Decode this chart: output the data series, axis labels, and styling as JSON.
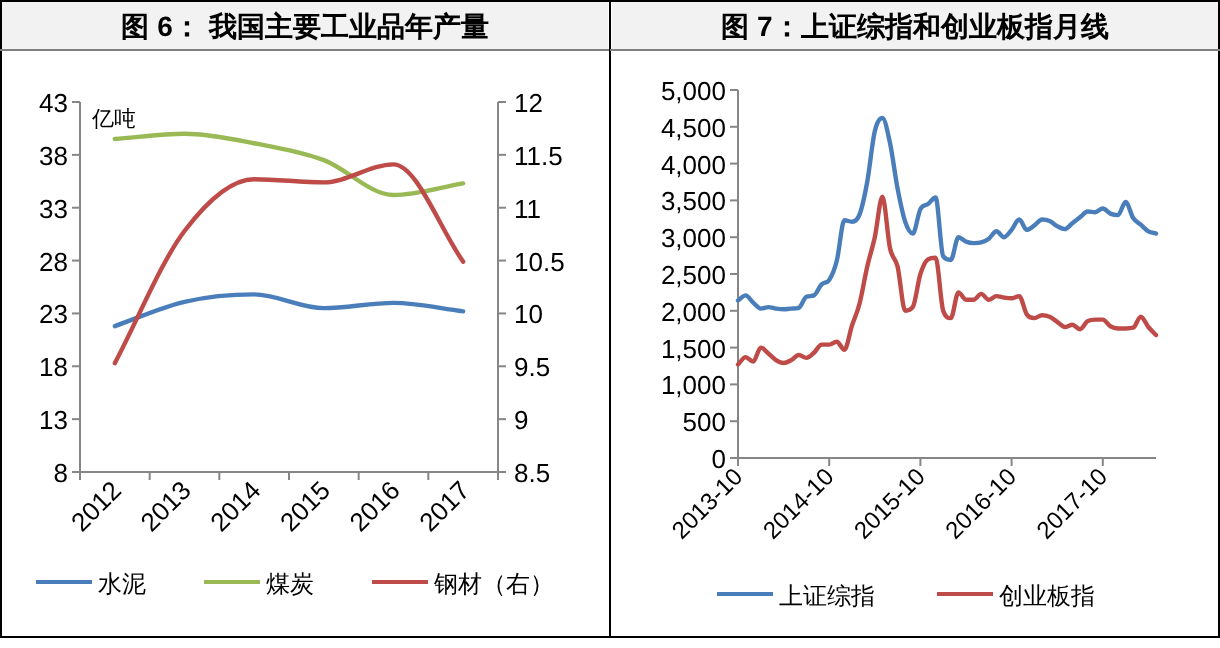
{
  "chart_data": [
    {
      "type": "line",
      "title": "图 6：  我国主要工业品年产量",
      "ylabel": "亿吨",
      "categories": [
        "2012",
        "2013",
        "2014",
        "2015",
        "2016",
        "2017"
      ],
      "series": [
        {
          "name": "水泥",
          "color": "#4a7ebb",
          "values": [
            21.8,
            24.1,
            24.8,
            23.5,
            24.0,
            23.2
          ]
        },
        {
          "name": "煤炭",
          "color": "#98b954",
          "values": [
            39.5,
            40.0,
            39.1,
            37.5,
            34.2,
            35.3
          ]
        },
        {
          "name": "钢材（右）",
          "color": "#be4b48",
          "axis": "y2",
          "values": [
            9.53,
            10.78,
            11.27,
            11.24,
            11.41,
            10.49
          ]
        }
      ],
      "ylim": [
        8,
        43
      ],
      "yticks": [
        8,
        13,
        18,
        23,
        28,
        33,
        38,
        43
      ],
      "y2lim": [
        8.5,
        12
      ],
      "y2ticks": [
        {
          "value": 8.5,
          "label": "8.5"
        },
        9,
        {
          "value": 9.5,
          "label": "9.5"
        },
        10,
        {
          "value": 10.5,
          "label": "10.5"
        },
        11,
        {
          "value": 11.5,
          "label": "11.5"
        },
        12
      ],
      "legend": "bottom",
      "grid": false
    },
    {
      "type": "line",
      "title": "图 7：上证综指和创业板指月线",
      "x": [
        "2013-10",
        "2013-11",
        "2013-12",
        "2014-01",
        "2014-02",
        "2014-03",
        "2014-04",
        "2014-05",
        "2014-06",
        "2014-07",
        "2014-08",
        "2014-09",
        "2014-10",
        "2014-11",
        "2014-12",
        "2015-01",
        "2015-02",
        "2015-03",
        "2015-04",
        "2015-05",
        "2015-06",
        "2015-07",
        "2015-08",
        "2015-09",
        "2015-10",
        "2015-11",
        "2015-12",
        "2016-01",
        "2016-02",
        "2016-03",
        "2016-04",
        "2016-05",
        "2016-06",
        "2016-07",
        "2016-08",
        "2016-09",
        "2016-10",
        "2016-11",
        "2016-12",
        "2017-01",
        "2017-02",
        "2017-03",
        "2017-04",
        "2017-05",
        "2017-06",
        "2017-07",
        "2017-08",
        "2017-09",
        "2017-10",
        "2017-11",
        "2017-12",
        "2018-01",
        "2018-02",
        "2018-03",
        "2018-04",
        "2018-05"
      ],
      "series": [
        {
          "name": "上证综指",
          "color": "#4a7ebb",
          "values": [
            2140,
            2210,
            2110,
            2030,
            2050,
            2030,
            2020,
            2030,
            2040,
            2190,
            2210,
            2360,
            2420,
            2680,
            3230,
            3210,
            3310,
            3750,
            4440,
            4620,
            4280,
            3660,
            3210,
            3050,
            3380,
            3450,
            3540,
            2740,
            2690,
            3000,
            2940,
            2920,
            2930,
            2980,
            3080,
            3000,
            3100,
            3240,
            3100,
            3160,
            3240,
            3220,
            3150,
            3110,
            3190,
            3270,
            3350,
            3340,
            3390,
            3320,
            3300,
            3480,
            3260,
            3170,
            3080,
            3050
          ]
        },
        {
          "name": "创业板指",
          "color": "#be4b48",
          "values": [
            1270,
            1370,
            1310,
            1500,
            1420,
            1330,
            1290,
            1330,
            1400,
            1360,
            1430,
            1540,
            1540,
            1580,
            1470,
            1800,
            2100,
            2600,
            3000,
            3550,
            2850,
            2600,
            2000,
            2050,
            2500,
            2700,
            2720,
            2000,
            1900,
            2250,
            2150,
            2150,
            2230,
            2150,
            2200,
            2180,
            2170,
            2200,
            1950,
            1900,
            1940,
            1920,
            1850,
            1780,
            1810,
            1750,
            1860,
            1880,
            1880,
            1790,
            1760,
            1760,
            1770,
            1920,
            1780,
            1670
          ]
        }
      ],
      "xlim": [
        "2013-10",
        "2018-05"
      ],
      "xticks": [
        "2013-10",
        "2014-10",
        "2015-10",
        "2016-10",
        "2017-10"
      ],
      "ylim": [
        0,
        5000
      ],
      "yticks": [
        0,
        500,
        {
          "value": 1000,
          "label": "1,000"
        },
        {
          "value": 1500,
          "label": "1,500"
        },
        {
          "value": 2000,
          "label": "2,000"
        },
        {
          "value": 2500,
          "label": "2,500"
        },
        {
          "value": 3000,
          "label": "3,000"
        },
        {
          "value": 3500,
          "label": "3,500"
        },
        {
          "value": 4000,
          "label": "4,000"
        },
        {
          "value": 4500,
          "label": "4,500"
        },
        {
          "value": 5000,
          "label": "5,000"
        }
      ],
      "legend": "bottom",
      "grid": false
    }
  ]
}
